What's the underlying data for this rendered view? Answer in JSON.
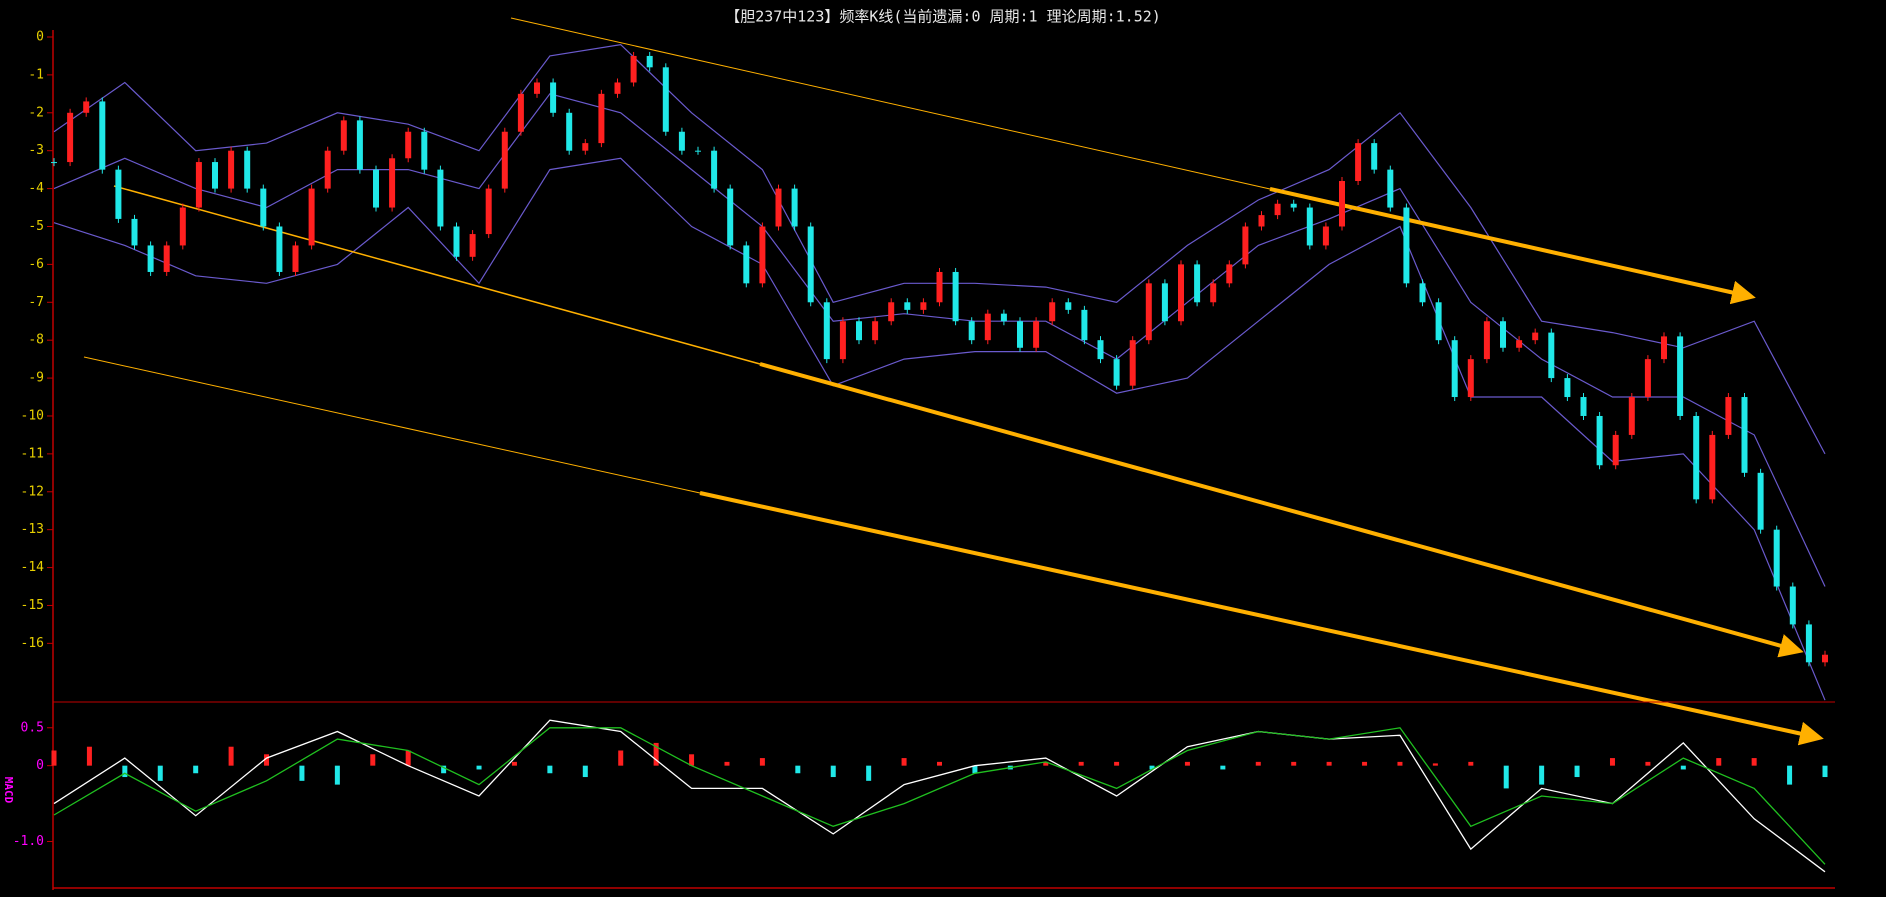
{
  "chart_data": [
    {
      "type": "candlestick",
      "title": "【胆237中123】频率K线(当前遗漏:0 周期:1 理论周期:1.52)",
      "ylim": [
        -17.6,
        0
      ],
      "yticks": [
        0,
        -1,
        -2,
        -3,
        -4,
        -5,
        -6,
        -7,
        -8,
        -9,
        -10,
        -11,
        -12,
        -13,
        -14,
        -15,
        -16
      ],
      "xlim": [
        0,
        110
      ],
      "up_color": "#ff2020",
      "down_color": "#20e8e8",
      "closes": [
        -3.3,
        -2.0,
        -1.7,
        -3.5,
        -4.8,
        -5.5,
        -6.2,
        -5.5,
        -4.5,
        -3.3,
        -4.0,
        -3.0,
        -4.0,
        -5.0,
        -6.2,
        -5.5,
        -4.0,
        -3.0,
        -2.2,
        -3.5,
        -4.5,
        -3.2,
        -2.5,
        -3.5,
        -5.0,
        -5.8,
        -5.2,
        -4.0,
        -2.5,
        -1.5,
        -1.2,
        -2.0,
        -3.0,
        -2.8,
        -1.5,
        -1.2,
        -0.5,
        -0.8,
        -2.5,
        -3.0,
        -3.0,
        -4.0,
        -5.5,
        -6.5,
        -5.0,
        -4.0,
        -5.0,
        -7.0,
        -8.5,
        -7.5,
        -8.0,
        -7.5,
        -7.0,
        -7.2,
        -7.0,
        -6.2,
        -7.5,
        -8.0,
        -7.3,
        -7.5,
        -8.2,
        -7.5,
        -7.0,
        -7.2,
        -8.0,
        -8.5,
        -9.2,
        -8.0,
        -6.5,
        -7.5,
        -6.0,
        -7.0,
        -6.5,
        -6.0,
        -5.0,
        -4.7,
        -4.4,
        -4.5,
        -5.5,
        -5.0,
        -3.8,
        -2.8,
        -3.5,
        -4.5,
        -6.5,
        -7.0,
        -8.0,
        -9.5,
        -8.5,
        -7.5,
        -8.2,
        -8.0,
        -7.8,
        -9.0,
        -9.5,
        -10.0,
        -11.3,
        -10.5,
        -9.5,
        -8.5,
        -7.9,
        -10.0,
        -12.2,
        -10.5,
        -9.5,
        -11.5,
        -13.0,
        -14.5,
        -15.5,
        -16.5,
        -16.3
      ],
      "bands": {
        "x": [
          0,
          4.4,
          8.8,
          13.2,
          17.6,
          22,
          26.4,
          30.8,
          35.2,
          39.6,
          44,
          48.4,
          52.8,
          57.2,
          61.6,
          66,
          70.4,
          74.8,
          79.2,
          83.6,
          88,
          92.4,
          96.8,
          101.2,
          105.6,
          110
        ],
        "color": "#6a5acd",
        "series": [
          {
            "values": [
              -2.5,
              -1.2,
              -3.0,
              -2.8,
              -2.0,
              -2.3,
              -3.0,
              -0.5,
              -0.2,
              -2.0,
              -3.5,
              -7.0,
              -6.5,
              -6.5,
              -6.6,
              -7.0,
              -5.5,
              -4.3,
              -3.5,
              -2.0,
              -4.5,
              -7.5,
              -7.8,
              -8.2,
              -7.5,
              -11.0
            ]
          },
          {
            "values": [
              -4.0,
              -3.2,
              -4.0,
              -4.5,
              -3.5,
              -3.5,
              -4.0,
              -1.5,
              -2.0,
              -3.5,
              -5.0,
              -7.5,
              -7.3,
              -7.5,
              -7.5,
              -8.5,
              -7.0,
              -5.5,
              -4.8,
              -4.0,
              -7.0,
              -8.5,
              -9.5,
              -9.5,
              -10.5,
              -14.5
            ]
          },
          {
            "values": [
              -4.9,
              -5.5,
              -6.3,
              -6.5,
              -6.0,
              -4.5,
              -6.5,
              -3.5,
              -3.2,
              -5.0,
              -6.0,
              -9.2,
              -8.5,
              -8.3,
              -8.3,
              -9.4,
              -9.0,
              -7.5,
              -6.0,
              -5.0,
              -9.5,
              -9.5,
              -11.2,
              -11.0,
              -13.0,
              -17.5
            ]
          }
        ]
      }
    },
    {
      "type": "macd",
      "ylabel": "MACD",
      "ylim": [
        -1.6,
        0.8
      ],
      "yticks": [
        0.5,
        0,
        {
          "value": -1.0,
          "label": "-1.0"
        }
      ],
      "xlim": [
        0,
        110
      ],
      "x": [
        0,
        4.4,
        8.8,
        13.2,
        17.6,
        22,
        26.4,
        30.8,
        35.2,
        39.6,
        44,
        48.4,
        52.8,
        57.2,
        61.6,
        66,
        70.4,
        74.8,
        79.2,
        83.6,
        88,
        92.4,
        96.8,
        101.2,
        105.6,
        110
      ],
      "series": [
        {
          "color": "#ffffff",
          "values": [
            -0.5,
            0.1,
            -0.66,
            0.1,
            0.45,
            0.0,
            -0.4,
            0.6,
            0.45,
            -0.3,
            -0.3,
            -0.9,
            -0.25,
            0.0,
            0.1,
            -0.4,
            0.25,
            0.45,
            0.35,
            0.4,
            -1.1,
            -0.3,
            -0.5,
            0.3,
            -0.7,
            -1.4
          ]
        },
        {
          "color": "#20c020",
          "values": [
            -0.65,
            -0.1,
            -0.6,
            -0.2,
            0.35,
            0.2,
            -0.25,
            0.5,
            0.5,
            0.0,
            -0.4,
            -0.8,
            -0.5,
            -0.1,
            0.05,
            -0.3,
            0.2,
            0.45,
            0.35,
            0.5,
            -0.8,
            -0.4,
            -0.5,
            0.1,
            -0.3,
            -1.3
          ]
        }
      ],
      "hist_x": [
        0,
        2.2,
        4.4,
        6.6,
        8.8,
        11,
        13.2,
        15.4,
        17.6,
        19.8,
        22,
        24.2,
        26.4,
        28.6,
        30.8,
        33,
        35.2,
        37.4,
        39.6,
        41.8,
        44,
        46.2,
        48.4,
        50.6,
        52.8,
        55,
        57.2,
        59.4,
        61.6,
        63.8,
        66,
        68.2,
        70.4,
        72.6,
        74.8,
        77,
        79.2,
        81.4,
        83.6,
        85.8,
        88,
        90.2,
        92.4,
        94.6,
        96.8,
        99,
        101.2,
        103.4,
        105.6,
        107.8,
        110
      ],
      "hist": [
        0.2,
        0.25,
        -0.15,
        -0.2,
        -0.1,
        0.25,
        0.15,
        -0.2,
        -0.25,
        0.15,
        0.2,
        -0.1,
        -0.05,
        0.05,
        -0.1,
        -0.15,
        0.2,
        0.3,
        0.15,
        0.05,
        0.1,
        -0.1,
        -0.15,
        -0.2,
        0.1,
        0.05,
        -0.1,
        -0.05,
        0.05,
        0.05,
        0.05,
        -0.05,
        0.05,
        -0.05,
        0.05,
        0.05,
        0.05,
        0.05,
        0.05,
        0.03,
        0.05,
        -0.3,
        -0.25,
        -0.15,
        0.1,
        0.05,
        -0.05,
        0.1,
        0.1,
        -0.25,
        -0.15
      ]
    }
  ]
}
